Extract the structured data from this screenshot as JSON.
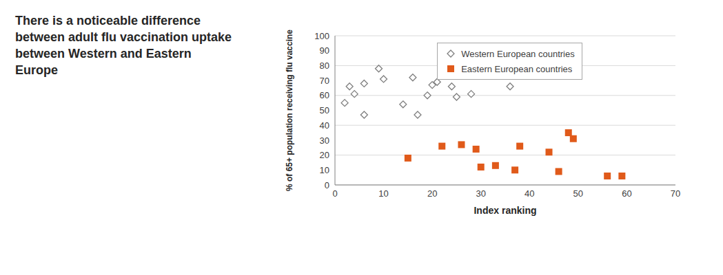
{
  "chart_data": {
    "type": "scatter",
    "title": "There is a noticeable difference between adult flu vaccination uptake between Western and Eastern Europe",
    "x_label": "Index ranking",
    "y_label": "% of 65+ population receiving flu vaccine",
    "xlim": [
      0,
      70
    ],
    "xticks": [
      0,
      10,
      20,
      30,
      40,
      50,
      60,
      70
    ],
    "ylim": [
      0,
      100
    ],
    "yticks": [
      0,
      10,
      20,
      30,
      40,
      50,
      60,
      70,
      80,
      90,
      100
    ],
    "grid": true,
    "legend": "top",
    "series": [
      {
        "name": "Western European countries",
        "color": "#7f7f7f",
        "marker": "diamond",
        "x": [
          2,
          3,
          4,
          6,
          6,
          9,
          10,
          14,
          16,
          17,
          19,
          20,
          21,
          24,
          25,
          28,
          36
        ],
        "values": [
          55,
          66,
          61,
          47,
          68,
          78,
          71,
          54,
          72,
          47,
          60,
          67,
          69,
          66,
          59,
          61,
          66
        ]
      },
      {
        "name": "Eastern European countries",
        "color": "#e05a1a",
        "marker": "square",
        "x": [
          15,
          22,
          26,
          29,
          30,
          33,
          37,
          38,
          44,
          46,
          48,
          49,
          56,
          59
        ],
        "values": [
          18,
          26,
          27,
          24,
          12,
          13,
          10,
          26,
          22,
          9,
          35,
          31,
          6,
          6
        ]
      }
    ]
  }
}
